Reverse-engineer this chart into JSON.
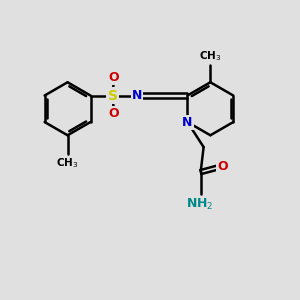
{
  "background_color": "#e0e0e0",
  "bond_color": "#000000",
  "bond_width": 1.8,
  "atom_colors": {
    "C": "#000000",
    "N_blue": "#0000cc",
    "N_teal": "#008888",
    "O": "#cc0000",
    "S": "#cccc00"
  },
  "figsize": [
    3.0,
    3.0
  ],
  "dpi": 100
}
